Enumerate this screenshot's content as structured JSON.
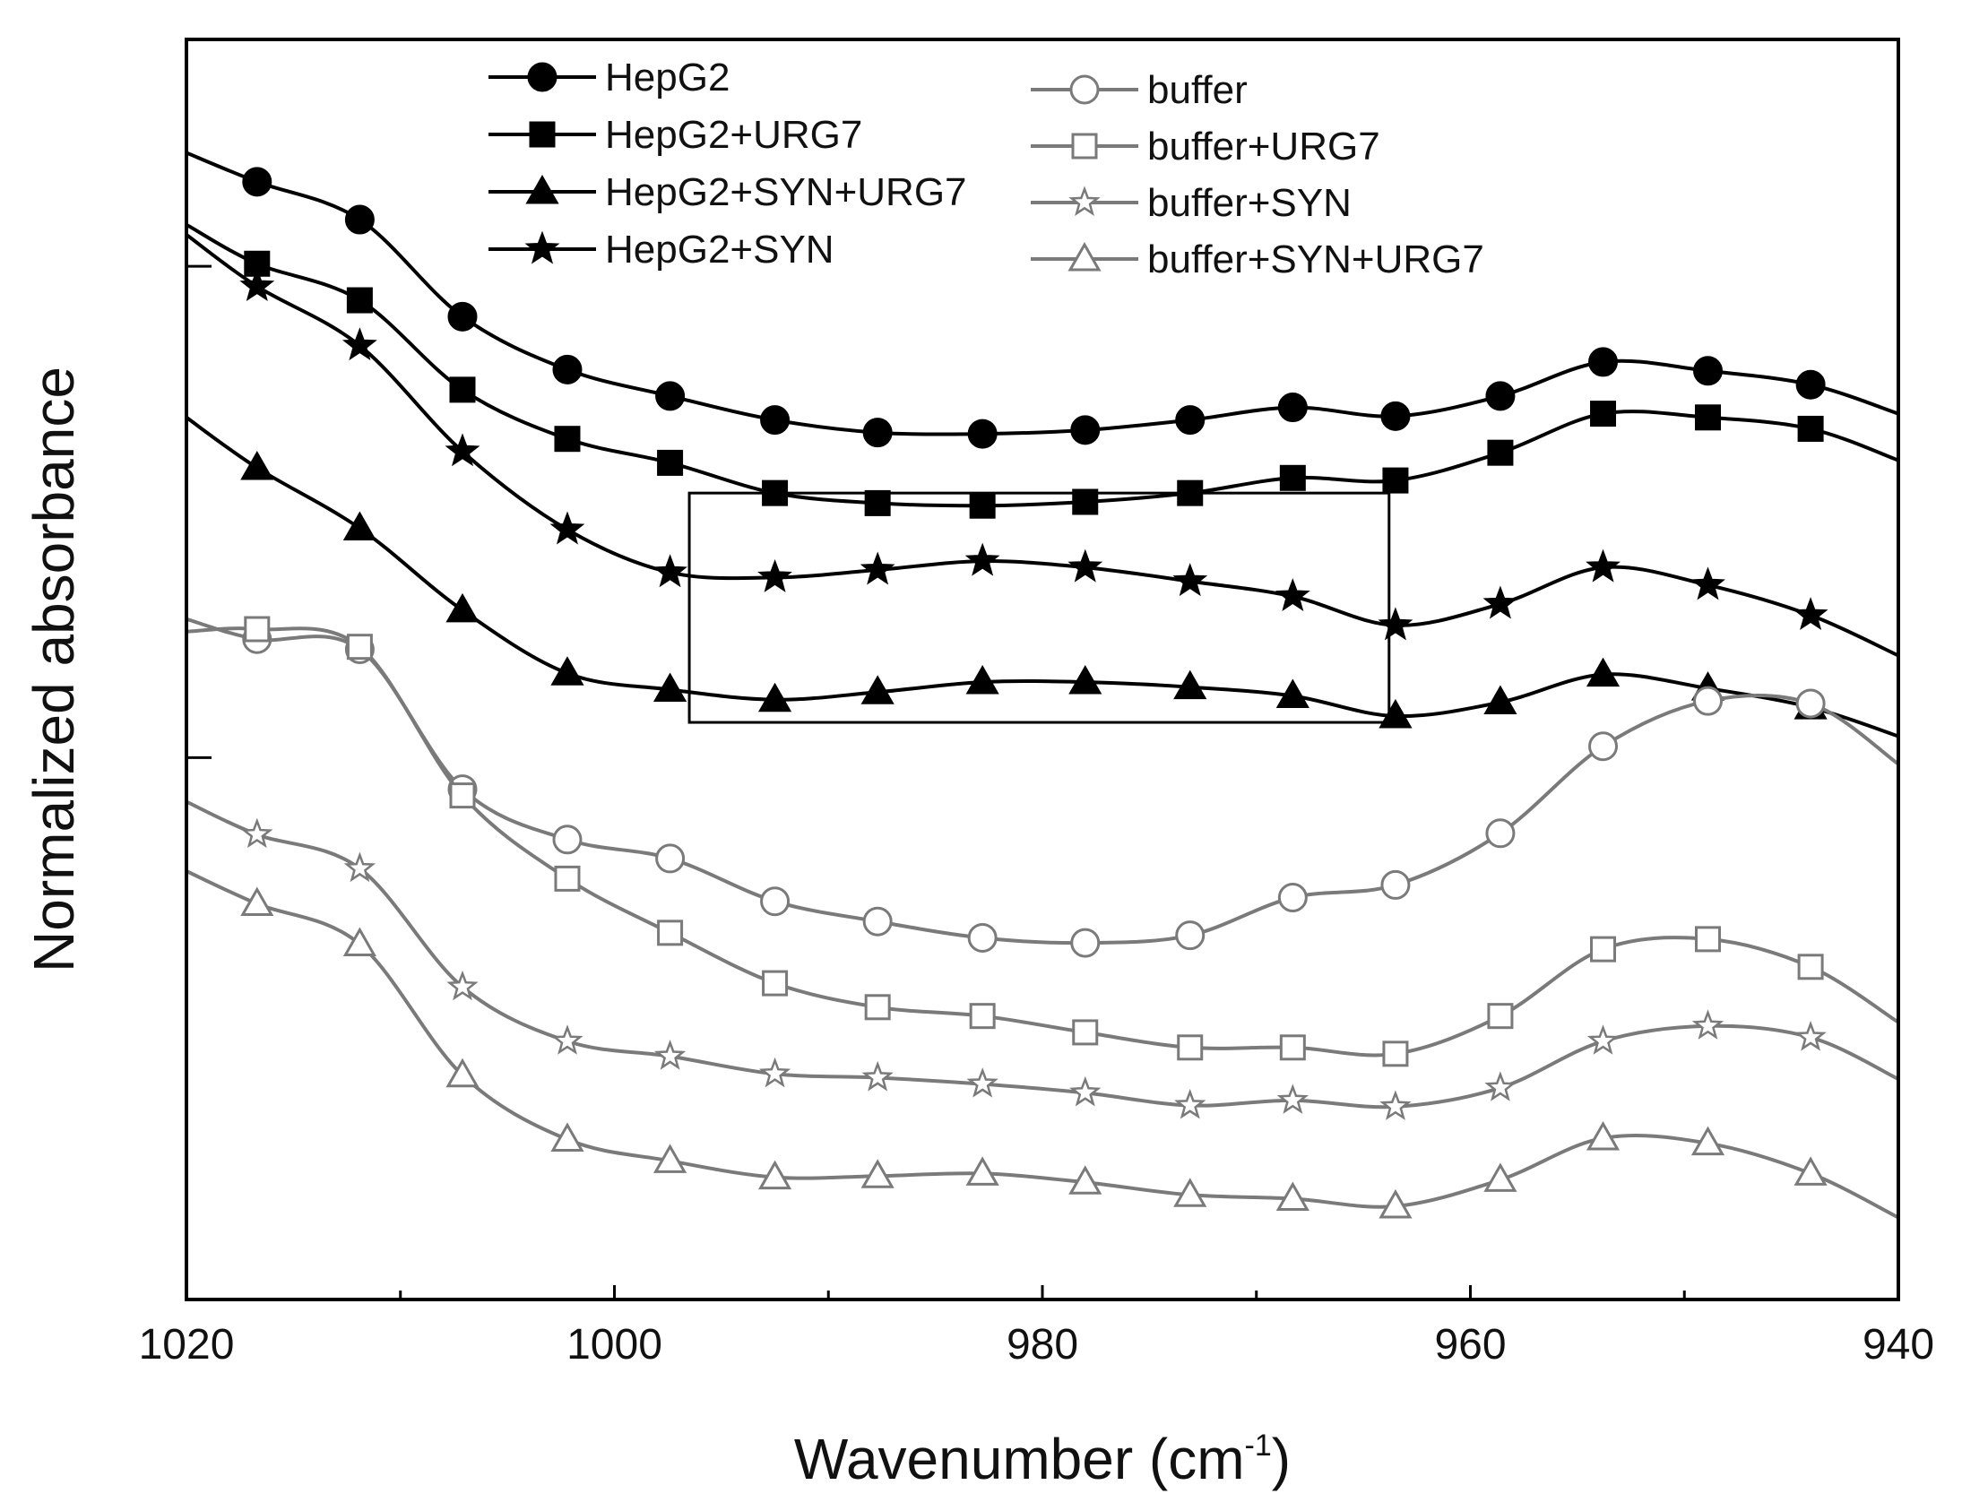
{
  "chart_data": {
    "type": "line",
    "title": "",
    "xlabel": "Wavenumber (cm",
    "xlabel_sup": "-1",
    "xlabel_close": ")",
    "ylabel": "Normalized absorbance",
    "xlim": [
      1020,
      940
    ],
    "x_reversed": true,
    "ylim": [
      0,
      1
    ],
    "y_tick_labels_shown": false,
    "x_ticks": [
      1020,
      1000,
      980,
      960,
      940
    ],
    "x_tick_labels": [
      "1020",
      "1000",
      "980",
      "960",
      "940"
    ],
    "x_minor_ticks": [
      1010,
      990,
      970,
      950
    ],
    "y_minor_ticks": [
      0.43,
      0.82
    ],
    "grid": false,
    "legend_position": "top",
    "annotation_box": {
      "x": [
        996.5,
        963.8
      ],
      "y": [
        0.458,
        0.64
      ]
    },
    "x": [
      1020,
      1016.7,
      1011.9,
      1007.1,
      1002.2,
      997.4,
      992.5,
      987.7,
      982.8,
      978.0,
      973.1,
      968.3,
      963.5,
      958.6,
      953.8,
      948.9,
      944.1,
      940
    ],
    "series": [
      {
        "name": "HepG2",
        "marker": "circle",
        "filled": true,
        "color": "#000000",
        "values": [
          0.91,
          0.887,
          0.857,
          0.78,
          0.738,
          0.717,
          0.698,
          0.688,
          0.687,
          0.69,
          0.698,
          0.708,
          0.701,
          0.717,
          0.744,
          0.737,
          0.726,
          0.703
        ]
      },
      {
        "name": "HepG2+URG7",
        "marker": "square",
        "filled": true,
        "color": "#000000",
        "values": [
          0.853,
          0.822,
          0.793,
          0.722,
          0.683,
          0.664,
          0.64,
          0.632,
          0.63,
          0.633,
          0.64,
          0.652,
          0.65,
          0.672,
          0.703,
          0.7,
          0.691,
          0.666
        ]
      },
      {
        "name": "HepG2+SYN+URG7",
        "marker": "triangle",
        "filled": true,
        "color": "#000000",
        "values": [
          0.7,
          0.66,
          0.612,
          0.547,
          0.497,
          0.484,
          0.476,
          0.482,
          0.49,
          0.49,
          0.486,
          0.479,
          0.463,
          0.474,
          0.496,
          0.485,
          0.47,
          0.447
        ]
      },
      {
        "name": "HepG2+SYN",
        "marker": "star",
        "filled": true,
        "color": "#000000",
        "values": [
          0.845,
          0.804,
          0.757,
          0.673,
          0.611,
          0.577,
          0.573,
          0.579,
          0.586,
          0.581,
          0.57,
          0.558,
          0.535,
          0.552,
          0.581,
          0.567,
          0.543,
          0.511
        ]
      },
      {
        "name": "buffer",
        "marker": "circle",
        "filled": false,
        "color": "#7a7a7a",
        "values": [
          0.54,
          0.524,
          0.516,
          0.405,
          0.365,
          0.35,
          0.316,
          0.3,
          0.287,
          0.283,
          0.289,
          0.319,
          0.329,
          0.37,
          0.439,
          0.475,
          0.473,
          0.425
        ]
      },
      {
        "name": "buffer+URG7",
        "marker": "square",
        "filled": false,
        "color": "#7a7a7a",
        "values": [
          0.53,
          0.532,
          0.518,
          0.4,
          0.334,
          0.291,
          0.251,
          0.232,
          0.225,
          0.212,
          0.2,
          0.2,
          0.195,
          0.225,
          0.278,
          0.286,
          0.264,
          0.22
        ]
      },
      {
        "name": "buffer+SYN",
        "marker": "star",
        "filled": false,
        "color": "#7a7a7a",
        "values": [
          0.395,
          0.369,
          0.342,
          0.248,
          0.205,
          0.193,
          0.179,
          0.176,
          0.171,
          0.164,
          0.154,
          0.158,
          0.153,
          0.168,
          0.205,
          0.217,
          0.208,
          0.175
        ]
      },
      {
        "name": "buffer+SYN+URG7",
        "marker": "triangle",
        "filled": false,
        "color": "#7a7a7a",
        "values": [
          0.34,
          0.314,
          0.282,
          0.178,
          0.127,
          0.11,
          0.097,
          0.098,
          0.1,
          0.093,
          0.083,
          0.08,
          0.074,
          0.095,
          0.128,
          0.124,
          0.1,
          0.065
        ]
      }
    ]
  }
}
